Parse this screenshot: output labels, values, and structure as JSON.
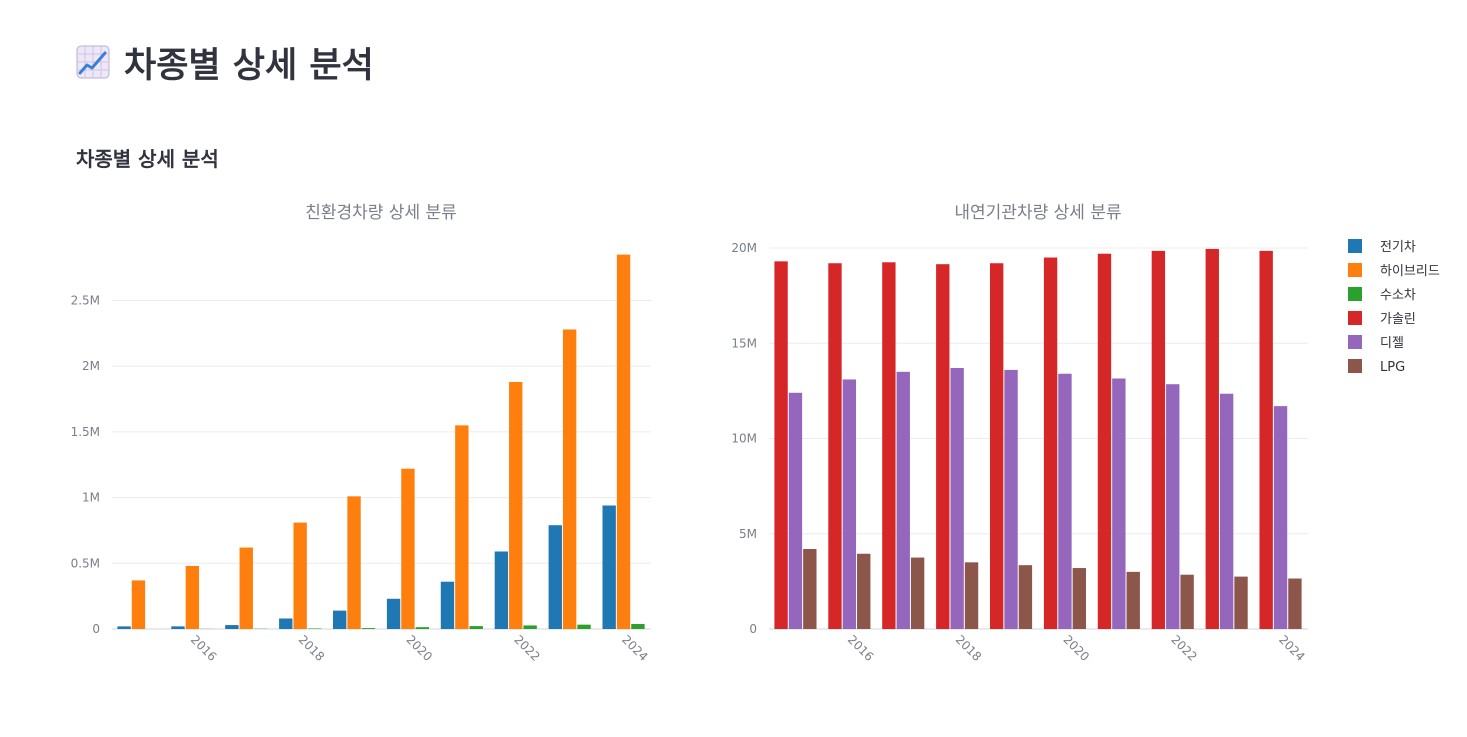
{
  "header": {
    "title": "차종별 상세 분석",
    "icon": "chart-increasing-icon"
  },
  "section": {
    "subheader": "차종별 상세 분석"
  },
  "chart_data": [
    {
      "type": "bar",
      "title": "친환경차량 상세 분류",
      "xlabel": "",
      "ylabel": "",
      "x": [
        2015,
        2016,
        2017,
        2018,
        2019,
        2020,
        2021,
        2022,
        2023,
        2024
      ],
      "xticks": [
        "2016",
        "2018",
        "2020",
        "2022",
        "2024"
      ],
      "ylim": [
        0,
        2900000
      ],
      "yticks": [
        0,
        500000,
        1000000,
        1500000,
        2000000,
        2500000
      ],
      "ytick_labels": [
        "0",
        "0.5M",
        "1M",
        "1.5M",
        "2M",
        "2.5M"
      ],
      "grid": true,
      "series": [
        {
          "name": "전기차",
          "color": "#1f77b4",
          "values": [
            20000,
            20000,
            30000,
            80000,
            140000,
            230000,
            360000,
            590000,
            790000,
            940000
          ]
        },
        {
          "name": "하이브리드",
          "color": "#ff7f0e",
          "values": [
            370000,
            480000,
            620000,
            810000,
            1010000,
            1220000,
            1550000,
            1880000,
            2280000,
            2850000
          ]
        },
        {
          "name": "수소차",
          "color": "#2ca02c",
          "values": [
            0,
            1000,
            2000,
            4000,
            7000,
            14000,
            22000,
            27000,
            33000,
            38000
          ]
        }
      ]
    },
    {
      "type": "bar",
      "title": "내연기관차량 상세 분류",
      "xlabel": "",
      "ylabel": "",
      "x": [
        2015,
        2016,
        2017,
        2018,
        2019,
        2020,
        2021,
        2022,
        2023,
        2024
      ],
      "xticks": [
        "2016",
        "2018",
        "2020",
        "2022",
        "2024"
      ],
      "ylim": [
        0,
        20000000
      ],
      "yticks": [
        0,
        5000000,
        10000000,
        15000000,
        20000000
      ],
      "ytick_labels": [
        "0",
        "5M",
        "10M",
        "15M",
        "20M"
      ],
      "grid": true,
      "legend_position": "top-right",
      "series": [
        {
          "name": "가솔린",
          "color": "#d62728",
          "values": [
            19300000,
            19200000,
            19250000,
            19150000,
            19200000,
            19500000,
            19700000,
            19850000,
            19950000,
            19850000
          ]
        },
        {
          "name": "디젤",
          "color": "#9467bd",
          "values": [
            12400000,
            13100000,
            13500000,
            13700000,
            13600000,
            13400000,
            13150000,
            12850000,
            12350000,
            11700000
          ]
        },
        {
          "name": "LPG",
          "color": "#8c564b",
          "values": [
            4200000,
            3950000,
            3750000,
            3500000,
            3350000,
            3200000,
            3000000,
            2850000,
            2750000,
            2650000
          ]
        }
      ]
    }
  ],
  "legend": [
    {
      "name": "전기차",
      "color": "#1f77b4"
    },
    {
      "name": "하이브리드",
      "color": "#ff7f0e"
    },
    {
      "name": "수소차",
      "color": "#2ca02c"
    },
    {
      "name": "가솔린",
      "color": "#d62728"
    },
    {
      "name": "디젤",
      "color": "#9467bd"
    },
    {
      "name": "LPG",
      "color": "#8c564b"
    }
  ]
}
